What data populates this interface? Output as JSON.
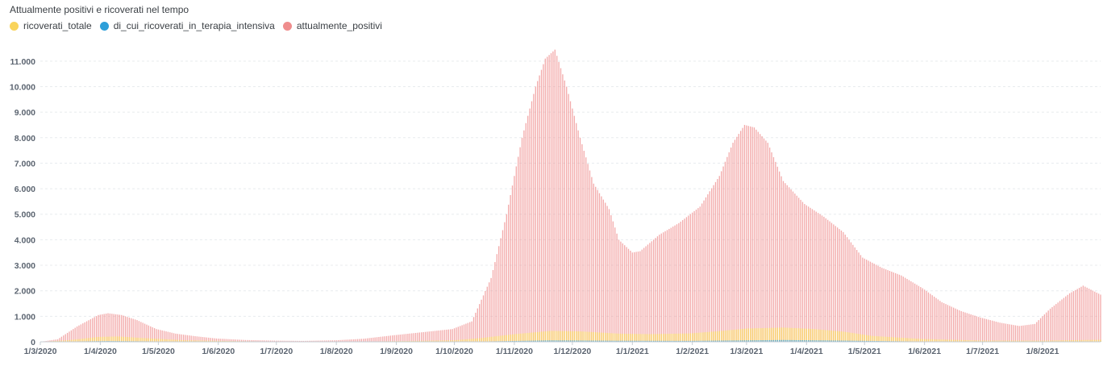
{
  "title": "Attualmente positivi e ricoverati nel tempo",
  "colors": {
    "ricoverati_totale": "#F9D45C",
    "di_cui_ricoverati_in_terapia_intensiva": "#2D9FD9",
    "attualmente_positivi": "#EF8D8D",
    "grid": "#e8ebee",
    "axis": "#5b6470"
  },
  "chart_data": {
    "type": "bar",
    "title": "Attualmente positivi e ricoverati nel tempo",
    "xlabel": "",
    "ylabel": "",
    "ylim": [
      0,
      11500
    ],
    "x_range": [
      "2020-03-01",
      "2021-08-31"
    ],
    "grid": true,
    "legend_position": "top-left",
    "y_ticks": [
      "0",
      "1.000",
      "2.000",
      "3.000",
      "4.000",
      "5.000",
      "6.000",
      "7.000",
      "8.000",
      "9.000",
      "10.000",
      "11.000"
    ],
    "y_tick_values": [
      0,
      1000,
      2000,
      3000,
      4000,
      5000,
      6000,
      7000,
      8000,
      9000,
      10000,
      11000
    ],
    "x_ticks": [
      "1/3/2020",
      "1/4/2020",
      "1/5/2020",
      "1/6/2020",
      "1/7/2020",
      "1/8/2020",
      "1/9/2020",
      "1/10/2020",
      "1/11/2020",
      "1/12/2020",
      "1/1/2021",
      "1/2/2021",
      "1/3/2021",
      "1/4/2021",
      "1/5/2021",
      "1/6/2021",
      "1/7/2021",
      "1/8/2021"
    ],
    "x_tick_dates": [
      "2020-03-01",
      "2020-04-01",
      "2020-05-01",
      "2020-06-01",
      "2020-07-01",
      "2020-08-01",
      "2020-09-01",
      "2020-10-01",
      "2020-11-01",
      "2020-12-01",
      "2021-01-01",
      "2021-02-01",
      "2021-03-01",
      "2021-04-01",
      "2021-05-01",
      "2021-06-01",
      "2021-07-01",
      "2021-08-01"
    ],
    "series": [
      {
        "name": "ricoverati_totale",
        "color": "#F9D45C",
        "points": [
          [
            "2020-03-01",
            0
          ],
          [
            "2020-03-15",
            60
          ],
          [
            "2020-03-31",
            190
          ],
          [
            "2020-04-10",
            210
          ],
          [
            "2020-04-25",
            140
          ],
          [
            "2020-05-15",
            60
          ],
          [
            "2020-06-15",
            20
          ],
          [
            "2020-07-15",
            8
          ],
          [
            "2020-08-15",
            10
          ],
          [
            "2020-09-15",
            40
          ],
          [
            "2020-10-01",
            60
          ],
          [
            "2020-10-15",
            150
          ],
          [
            "2020-11-01",
            300
          ],
          [
            "2020-11-20",
            430
          ],
          [
            "2020-12-05",
            410
          ],
          [
            "2020-12-25",
            320
          ],
          [
            "2021-01-10",
            300
          ],
          [
            "2021-01-31",
            330
          ],
          [
            "2021-02-15",
            420
          ],
          [
            "2021-03-01",
            520
          ],
          [
            "2021-03-20",
            560
          ],
          [
            "2021-04-05",
            500
          ],
          [
            "2021-04-20",
            400
          ],
          [
            "2021-05-05",
            230
          ],
          [
            "2021-05-31",
            110
          ],
          [
            "2021-06-30",
            50
          ],
          [
            "2021-07-31",
            45
          ],
          [
            "2021-08-31",
            80
          ]
        ]
      },
      {
        "name": "di_cui_ricoverati_in_terapia_intensiva",
        "color": "#2D9FD9",
        "points": [
          [
            "2020-03-01",
            0
          ],
          [
            "2020-04-05",
            30
          ],
          [
            "2020-05-15",
            8
          ],
          [
            "2020-07-15",
            1
          ],
          [
            "2020-10-15",
            12
          ],
          [
            "2020-11-20",
            55
          ],
          [
            "2020-12-25",
            40
          ],
          [
            "2021-01-31",
            35
          ],
          [
            "2021-03-20",
            70
          ],
          [
            "2021-04-20",
            45
          ],
          [
            "2021-05-31",
            12
          ],
          [
            "2021-07-31",
            5
          ],
          [
            "2021-08-31",
            10
          ]
        ]
      },
      {
        "name": "attualmente_positivi",
        "color": "#EF8D8D",
        "points": [
          [
            "2020-03-01",
            0
          ],
          [
            "2020-03-10",
            100
          ],
          [
            "2020-03-20",
            600
          ],
          [
            "2020-03-31",
            1050
          ],
          [
            "2020-04-05",
            1120
          ],
          [
            "2020-04-12",
            1050
          ],
          [
            "2020-04-20",
            850
          ],
          [
            "2020-04-30",
            500
          ],
          [
            "2020-05-10",
            320
          ],
          [
            "2020-05-20",
            220
          ],
          [
            "2020-05-31",
            130
          ],
          [
            "2020-06-15",
            70
          ],
          [
            "2020-07-01",
            45
          ],
          [
            "2020-07-15",
            35
          ],
          [
            "2020-08-01",
            60
          ],
          [
            "2020-08-15",
            120
          ],
          [
            "2020-08-31",
            260
          ],
          [
            "2020-09-15",
            380
          ],
          [
            "2020-09-30",
            500
          ],
          [
            "2020-10-10",
            800
          ],
          [
            "2020-10-20",
            2500
          ],
          [
            "2020-10-28",
            5000
          ],
          [
            "2020-11-05",
            8000
          ],
          [
            "2020-11-12",
            10000
          ],
          [
            "2020-11-17",
            11100
          ],
          [
            "2020-11-22",
            11450
          ],
          [
            "2020-11-28",
            10000
          ],
          [
            "2020-12-05",
            8000
          ],
          [
            "2020-12-12",
            6200
          ],
          [
            "2020-12-20",
            5200
          ],
          [
            "2020-12-25",
            4000
          ],
          [
            "2021-01-01",
            3500
          ],
          [
            "2021-01-05",
            3550
          ],
          [
            "2021-01-15",
            4200
          ],
          [
            "2021-01-25",
            4650
          ],
          [
            "2021-02-05",
            5300
          ],
          [
            "2021-02-15",
            6500
          ],
          [
            "2021-02-22",
            7800
          ],
          [
            "2021-02-28",
            8500
          ],
          [
            "2021-03-05",
            8400
          ],
          [
            "2021-03-12",
            7800
          ],
          [
            "2021-03-20",
            6300
          ],
          [
            "2021-03-31",
            5400
          ],
          [
            "2021-04-10",
            4900
          ],
          [
            "2021-04-20",
            4300
          ],
          [
            "2021-04-30",
            3300
          ],
          [
            "2021-05-10",
            2900
          ],
          [
            "2021-05-20",
            2600
          ],
          [
            "2021-05-31",
            2100
          ],
          [
            "2021-06-10",
            1550
          ],
          [
            "2021-06-20",
            1200
          ],
          [
            "2021-06-30",
            950
          ],
          [
            "2021-07-10",
            750
          ],
          [
            "2021-07-20",
            620
          ],
          [
            "2021-07-28",
            700
          ],
          [
            "2021-08-05",
            1300
          ],
          [
            "2021-08-15",
            1900
          ],
          [
            "2021-08-22",
            2200
          ],
          [
            "2021-08-31",
            1850
          ]
        ]
      }
    ]
  }
}
